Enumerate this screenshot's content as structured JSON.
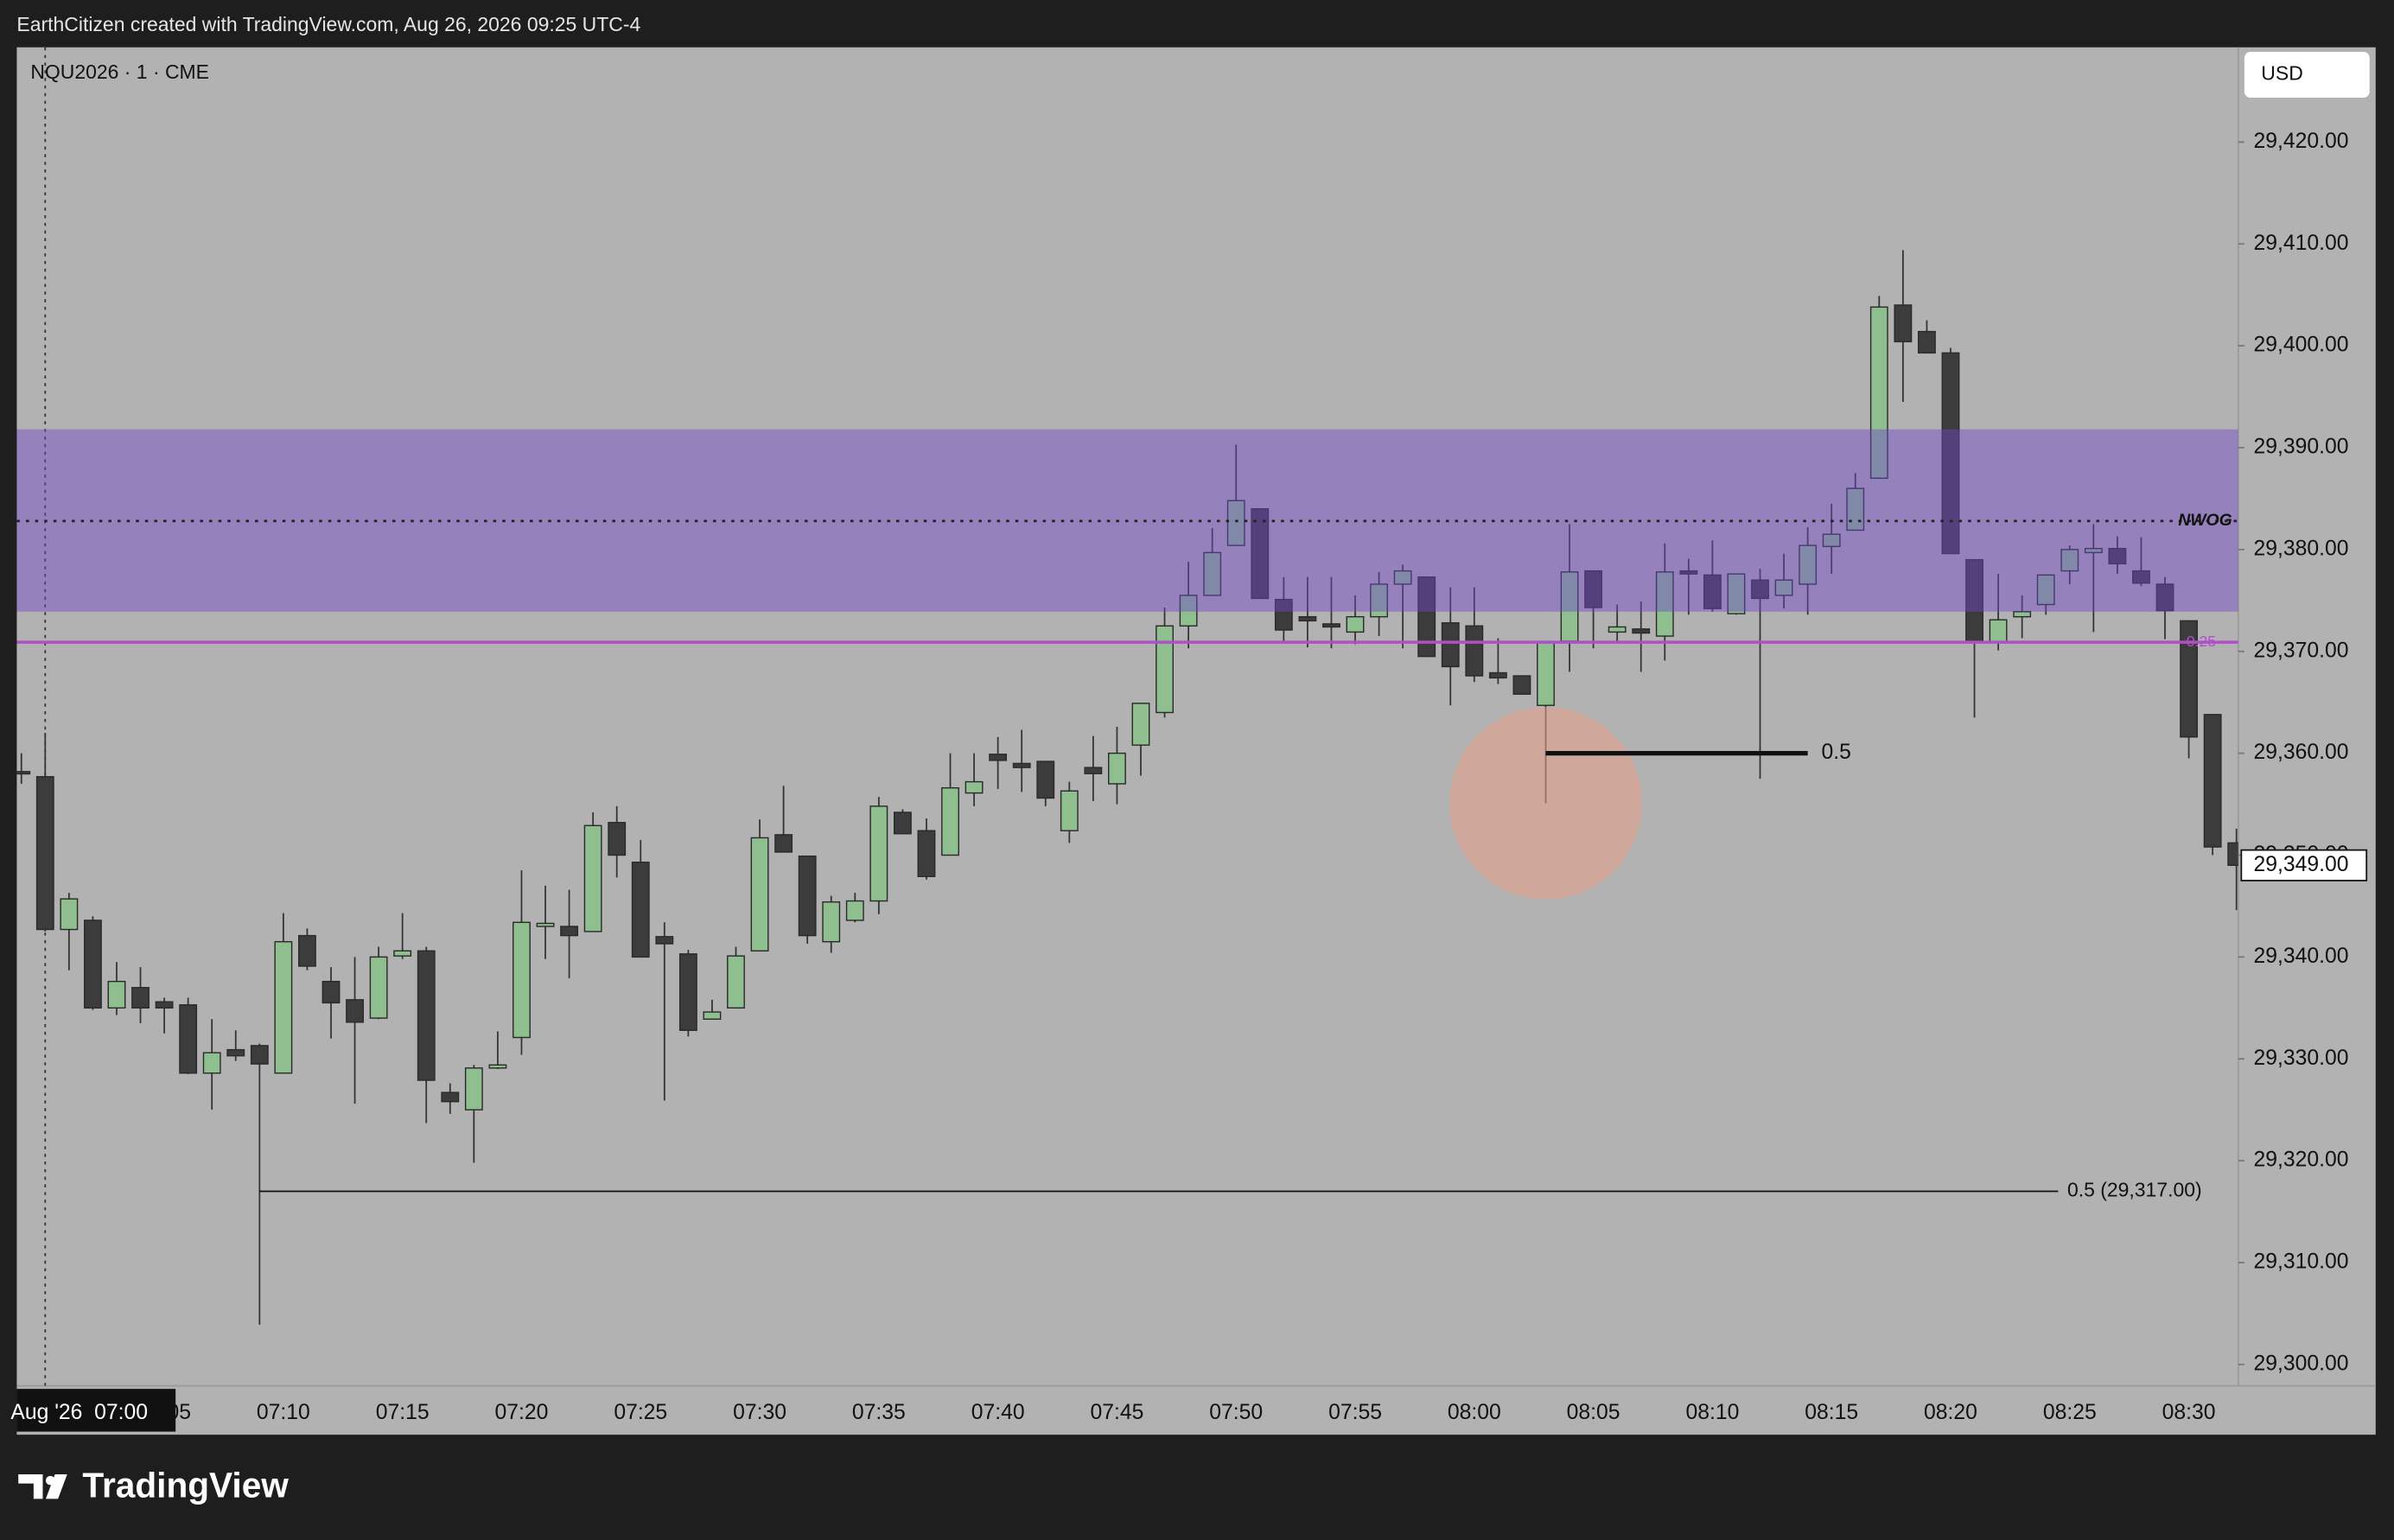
{
  "header": {
    "caption": "EarthCitizen created with TradingView.com, Aug 26, 2026 09:25 UTC-4",
    "brand": "TradingView"
  },
  "chart_data": {
    "type": "candlestick",
    "title": "NQU2026 · 1 · CME",
    "currency": "USD",
    "grid": false,
    "colors": {
      "up": "#8fbf8f",
      "down": "#3c3c3c",
      "zone": "#7048c8",
      "level": "#b04fc8"
    },
    "x": [
      "06:59",
      "07:00",
      "07:01",
      "07:02",
      "07:03",
      "07:04",
      "07:05",
      "07:06",
      "07:07",
      "07:08",
      "07:09",
      "07:10",
      "07:11",
      "07:12",
      "07:13",
      "07:14",
      "07:15",
      "07:16",
      "07:17",
      "07:18",
      "07:19",
      "07:20",
      "07:21",
      "07:22",
      "07:23",
      "07:24",
      "07:25",
      "07:26",
      "07:27",
      "07:28",
      "07:29",
      "07:30",
      "07:31",
      "07:32",
      "07:33",
      "07:34",
      "07:35",
      "07:36",
      "07:37",
      "07:38",
      "07:39",
      "07:40",
      "07:41",
      "07:42",
      "07:43",
      "07:44",
      "07:45",
      "07:46",
      "07:47",
      "07:48",
      "07:49",
      "07:50",
      "07:51",
      "07:52",
      "07:53",
      "07:54",
      "07:55",
      "07:56",
      "07:57",
      "07:58",
      "07:59",
      "08:00",
      "08:01",
      "08:02",
      "08:03",
      "08:04",
      "08:05",
      "08:06",
      "08:07",
      "08:08",
      "08:09",
      "08:10",
      "08:11",
      "08:12",
      "08:13",
      "08:14",
      "08:15",
      "08:16",
      "08:17",
      "08:18",
      "08:19",
      "08:20",
      "08:21",
      "08:22",
      "08:23",
      "08:24",
      "08:25",
      "08:26",
      "08:27",
      "08:28",
      "08:29",
      "08:30",
      "08:31",
      "08:32"
    ],
    "open": [
      29358.2,
      29357.7,
      29342.7,
      29343.6,
      29335.0,
      29337.0,
      29335.6,
      29335.3,
      29328.6,
      29330.9,
      29331.3,
      29328.6,
      29342.1,
      29337.6,
      29335.8,
      29334.0,
      29340.1,
      29340.6,
      29326.7,
      29325.0,
      29329.1,
      29332.1,
      29343.0,
      29343.0,
      29342.5,
      29353.2,
      29349.3,
      29342.0,
      29340.3,
      29333.9,
      29335.0,
      29340.6,
      29352.0,
      29349.9,
      29341.5,
      29343.6,
      29345.5,
      29354.2,
      29352.4,
      29350.0,
      29356.1,
      29359.9,
      29359.0,
      29359.2,
      29352.4,
      29358.6,
      29357.0,
      29360.8,
      29364.0,
      29372.5,
      29375.5,
      29380.4,
      29384.0,
      29375.1,
      29373.4,
      29372.7,
      29371.9,
      29373.4,
      29376.6,
      29377.3,
      29372.8,
      29372.5,
      29367.9,
      29367.6,
      29364.7,
      29371.0,
      29377.9,
      29371.9,
      29372.2,
      29371.5,
      29377.9,
      29377.5,
      29373.7,
      29377.0,
      29375.5,
      29376.6,
      29380.3,
      29381.9,
      29387.0,
      29404.0,
      29401.4,
      29399.3,
      29379.0,
      29370.9,
      29373.4,
      29374.6,
      29377.9,
      29379.7,
      29380.1,
      29377.9,
      29376.6,
      29373.0,
      29363.8,
      29351.2
    ],
    "high": [
      29360,
      29362,
      29346.3,
      29344,
      29339.5,
      29339,
      29336,
      29336,
      29333.9,
      29332.8,
      29331.5,
      29344.3,
      29342.8,
      29339,
      29340,
      29341,
      29344.3,
      29341,
      29327.6,
      29329.4,
      29332.7,
      29348.5,
      29347,
      29346.6,
      29354.2,
      29354.8,
      29351.5,
      29343.4,
      29340.7,
      29335.8,
      29341,
      29353.5,
      29356.8,
      29349.9,
      29346,
      29346.3,
      29355.7,
      29354.5,
      29353.6,
      29360,
      29360,
      29361.6,
      29362.3,
      29359.2,
      29357.2,
      29361.7,
      29362.6,
      29364.9,
      29374.3,
      29378.8,
      29382.1,
      29390.3,
      29384,
      29377.3,
      29377.3,
      29377.3,
      29375.5,
      29377.8,
      29378.5,
      29377.3,
      29376.3,
      29376.3,
      29371.3,
      29367.6,
      29370.9,
      29382.5,
      29377.9,
      29374.6,
      29374.9,
      29380.6,
      29379.1,
      29380.9,
      29377.6,
      29378.1,
      29379.6,
      29382.2,
      29384.5,
      29387.5,
      29404.9,
      29409.4,
      29402.5,
      29399.8,
      29379,
      29377.6,
      29375.5,
      29377.5,
      29380.4,
      29382.5,
      29381.3,
      29381.2,
      29377.3,
      29373,
      29363.8,
      29352.6
    ],
    "low": [
      29357,
      29342.5,
      29338.7,
      29334.8,
      29334.3,
      29333.5,
      29332.5,
      29328.5,
      29325,
      29329.8,
      29303.9,
      29328.6,
      29338.7,
      29332,
      29325.6,
      29333.9,
      29339.8,
      29323.7,
      29324.6,
      29319.8,
      29329,
      29330.4,
      29339.8,
      29337.9,
      29342.5,
      29347.8,
      29340,
      29325.9,
      29332.2,
      29333.9,
      29335,
      29340.6,
      29350.3,
      29341.3,
      29340.4,
      29343.4,
      29344.2,
      29352.1,
      29347.6,
      29350,
      29354.8,
      29356.5,
      29356.2,
      29354.8,
      29351.2,
      29355.3,
      29355,
      29357.8,
      29363.5,
      29370.3,
      29375.5,
      29380.4,
      29375.2,
      29371,
      29370.4,
      29370.3,
      29370.7,
      29371.5,
      29370.3,
      29369.5,
      29364.7,
      29367,
      29366.8,
      29365.8,
      29355.1,
      29368,
      29370.3,
      29370.9,
      29368,
      29369.1,
      29373.6,
      29373.9,
      29373.6,
      29357.5,
      29374.2,
      29373.6,
      29377.6,
      29381.9,
      29387,
      29394.5,
      29399.3,
      29379.6,
      29363.5,
      29370.1,
      29371.3,
      29373.6,
      29376.6,
      29371.9,
      29377.6,
      29376.4,
      29371.2,
      29359.5,
      29350,
      29344.6
    ],
    "close": [
      29358.0,
      29342.7,
      29345.7,
      29335.0,
      29337.6,
      29335.0,
      29335.0,
      29328.6,
      29330.6,
      29330.3,
      29329.5,
      29341.5,
      29339.1,
      29335.5,
      29333.6,
      29340.0,
      29340.6,
      29327.9,
      29325.8,
      29329.1,
      29329.4,
      29343.4,
      29343.3,
      29342.1,
      29352.9,
      29350.0,
      29340.0,
      29341.3,
      29332.8,
      29334.6,
      29340.1,
      29351.7,
      29350.3,
      29342.1,
      29345.4,
      29345.5,
      29354.8,
      29352.1,
      29347.9,
      29356.6,
      29357.2,
      29359.3,
      29358.6,
      29355.6,
      29356.3,
      29358.0,
      29360.0,
      29364.9,
      29372.5,
      29375.5,
      29379.7,
      29384.8,
      29375.2,
      29372.1,
      29373.0,
      29372.4,
      29373.4,
      29376.6,
      29377.9,
      29369.5,
      29368.5,
      29367.6,
      29367.4,
      29365.8,
      29370.9,
      29377.8,
      29374.3,
      29372.4,
      29371.8,
      29377.8,
      29377.6,
      29374.2,
      29377.6,
      29375.2,
      29377.0,
      29380.4,
      29381.5,
      29386.0,
      29403.8,
      29400.4,
      29399.3,
      29379.6,
      29370.9,
      29373.1,
      29373.9,
      29377.5,
      29380.0,
      29380.1,
      29378.6,
      29376.7,
      29374.0,
      29361.6,
      29350.8,
      29349.0
    ],
    "ylim": [
      29297.9,
      29429.3
    ],
    "yticks": [
      {
        "value": 29300,
        "label": "29,300.00"
      },
      {
        "value": 29310,
        "label": "29,310.00"
      },
      {
        "value": 29320,
        "label": "29,320.00"
      },
      {
        "value": 29330,
        "label": "29,330.00"
      },
      {
        "value": 29340,
        "label": "29,340.00"
      },
      {
        "value": 29350,
        "label": "29,350.00"
      },
      {
        "value": 29360,
        "label": "29,360.00"
      },
      {
        "value": 29370,
        "label": "29,370.00"
      },
      {
        "value": 29380,
        "label": "29,380.00"
      },
      {
        "value": 29390,
        "label": "29,390.00"
      },
      {
        "value": 29400,
        "label": "29,400.00"
      },
      {
        "value": 29410,
        "label": "29,410.00"
      },
      {
        "value": 29420,
        "label": "29,420.00"
      }
    ],
    "xticks": [
      "07:05",
      "07:10",
      "07:15",
      "07:20",
      "07:25",
      "07:30",
      "07:35",
      "07:40",
      "07:45",
      "07:50",
      "07:55",
      "08:00",
      "08:05",
      "08:10",
      "08:15",
      "08:20",
      "08:25",
      "08:30"
    ],
    "zone": {
      "label": "NWOG",
      "from": 29373.9,
      "to": 29391.8,
      "level": 29382.8
    },
    "level_025": {
      "label": "0.25",
      "value": 29370.9
    },
    "level_long": {
      "label": "0.5 (29,317.00)",
      "value": 29317,
      "start": "07:09"
    },
    "level_short": {
      "label": "0.5",
      "value": 29360,
      "start": "08:03",
      "end": "08:14"
    },
    "circle": {
      "x": "08:03",
      "y": 29355.1
    },
    "last_price": {
      "value": 29349,
      "label": "29,349.00"
    },
    "crosshair": {
      "x": "07:00",
      "label": "Aug '26  07:00"
    }
  }
}
